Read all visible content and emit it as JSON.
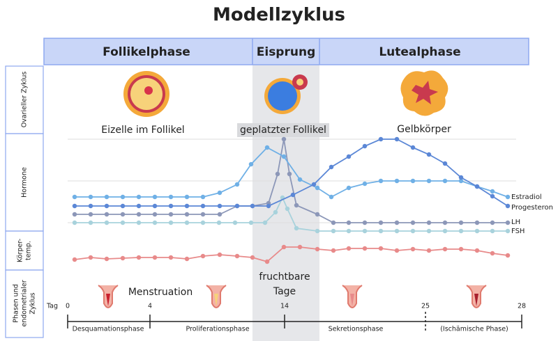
{
  "title": "Modellzyklus",
  "header": {
    "phases": [
      "Follikelphase",
      "Eisprung",
      "Lutealphase"
    ]
  },
  "rows": [
    "Ovarieller Zyklus",
    "Hormone",
    "Körper-",
    "temp.",
    "Phasen und",
    "endometrialer",
    "Zyklus"
  ],
  "ovary": {
    "labels": [
      "Eizelle im Follikel",
      "geplatzter Follikel",
      "Gelbkörper"
    ]
  },
  "hormones": {
    "names": [
      "Estradiol",
      "Progesteron",
      "LH",
      "FSH"
    ]
  },
  "fertile": [
    "fruchtbare",
    "Tage"
  ],
  "menstruation": "Menstruation",
  "days": {
    "label": "Tag",
    "ticks": [
      "0",
      "4",
      "14",
      "25",
      "28"
    ]
  },
  "endometrium": [
    "Desquamationsphase",
    "Proliferationsphase",
    "Sekretionsphase",
    "(Ischämische Phase)"
  ]
}
